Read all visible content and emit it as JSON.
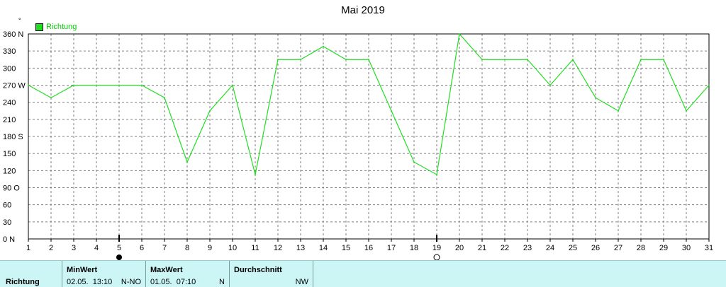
{
  "title": "Mai 2019",
  "unit_label": "°",
  "legend": {
    "label": "Richtung",
    "color": "#22dd22"
  },
  "colors": {
    "line": "#22dd22",
    "grid": "#808080",
    "background": "#ffffff",
    "stats_bg": "#ccf5f5"
  },
  "moon_phases": [
    {
      "day": 5,
      "phase": "full",
      "icon": "full-moon-icon"
    },
    {
      "day": 19,
      "phase": "new",
      "icon": "new-moon-icon"
    }
  ],
  "chart_data": {
    "type": "line",
    "title": "Mai 2019",
    "x": [
      1,
      2,
      3,
      4,
      5,
      6,
      7,
      8,
      9,
      10,
      11,
      12,
      13,
      14,
      15,
      16,
      17,
      18,
      19,
      20,
      21,
      22,
      23,
      24,
      25,
      26,
      27,
      28,
      29,
      30,
      31
    ],
    "series": [
      {
        "name": "Richtung",
        "values": [
          270,
          248,
          270,
          270,
          270,
          270,
          248,
          135,
          225,
          270,
          113,
          315,
          315,
          338,
          315,
          315,
          225,
          135,
          113,
          360,
          315,
          315,
          315,
          270,
          315,
          248,
          225,
          315,
          315,
          225,
          270
        ]
      }
    ],
    "xlim": [
      1,
      31
    ],
    "ylim": [
      0,
      360
    ],
    "y_ticks": [
      0,
      30,
      60,
      90,
      120,
      150,
      180,
      210,
      240,
      270,
      300,
      330,
      360
    ],
    "y_tick_labels": [
      "0 N",
      "30",
      "60",
      "90 O",
      "120",
      "150",
      "180 S",
      "210",
      "240",
      "270 W",
      "300",
      "330",
      "360 N"
    ],
    "x_tick_labels": [
      "1",
      "2",
      "3",
      "4",
      "5",
      "6",
      "7",
      "8",
      "9",
      "10",
      "11",
      "12",
      "13",
      "14",
      "15",
      "16",
      "17",
      "18",
      "19",
      "20",
      "21",
      "22",
      "23",
      "24",
      "25",
      "26",
      "27",
      "28",
      "29",
      "30",
      "31"
    ],
    "grid": true,
    "legend_position": "top-left"
  },
  "stats": {
    "row_label": "Richtung",
    "min": {
      "header": "MinWert",
      "date": "02.05.",
      "time": "13:10",
      "value": "N-NO"
    },
    "max": {
      "header": "MaxWert",
      "date": "01.05.",
      "time": "07:10",
      "value": "N"
    },
    "avg": {
      "header": "Durchschnitt",
      "value": "NW"
    }
  }
}
